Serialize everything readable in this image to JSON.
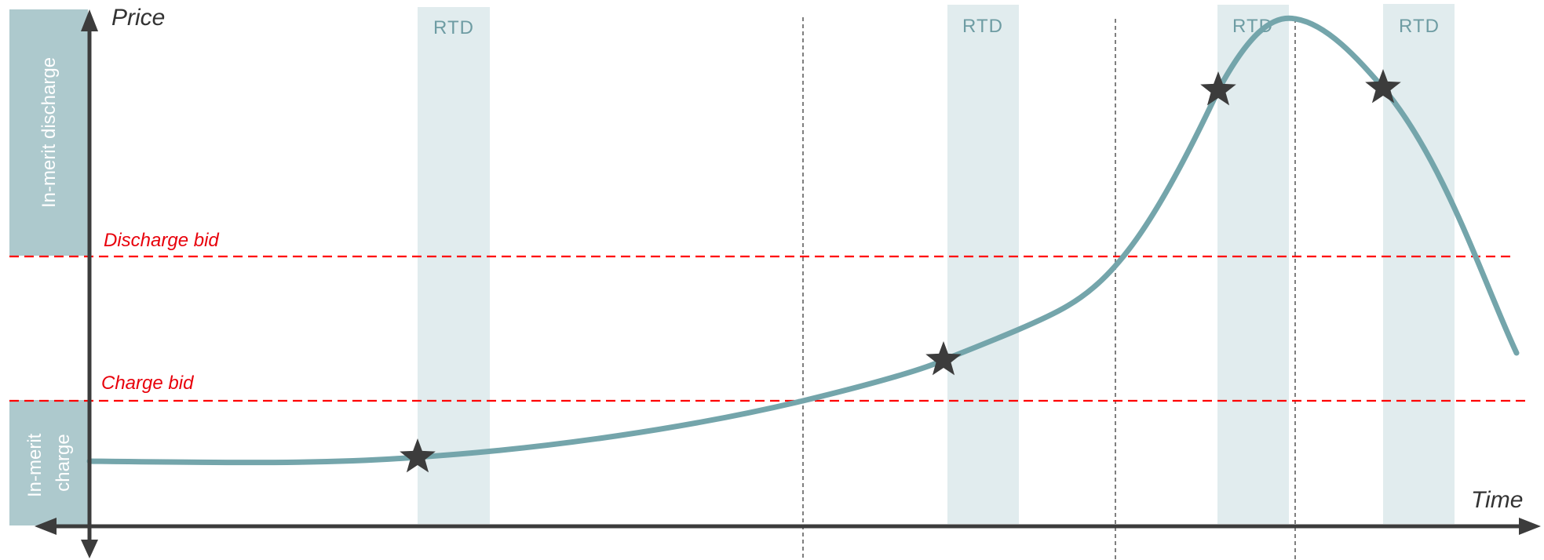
{
  "axes": {
    "y_title": "Price",
    "x_title": "Time"
  },
  "zones": {
    "discharge_label": "In-merit discharge",
    "charge_label_line1": "In-merit",
    "charge_label_line2": "charge"
  },
  "bids": {
    "discharge_label": "Discharge bid",
    "charge_label": "Charge bid"
  },
  "rtd_windows": [
    {
      "label": "RTD"
    },
    {
      "label": "RTD"
    },
    {
      "label": "RTD"
    },
    {
      "label": "RTD"
    }
  ],
  "markers": [
    {
      "name": "star-marker-1"
    },
    {
      "name": "star-marker-2"
    },
    {
      "name": "star-marker-3"
    },
    {
      "name": "star-marker-4"
    }
  ],
  "colors": {
    "zone_fill": "#adc9cd",
    "rtd_fill": "#e1ecee",
    "rtd_text": "#6e9ca3",
    "price_curve": "#74a5ab",
    "bid_line": "#ff0000",
    "axis": "#3c3c3c",
    "star": "#3c3c3c",
    "zone_text": "#ffffff"
  }
}
